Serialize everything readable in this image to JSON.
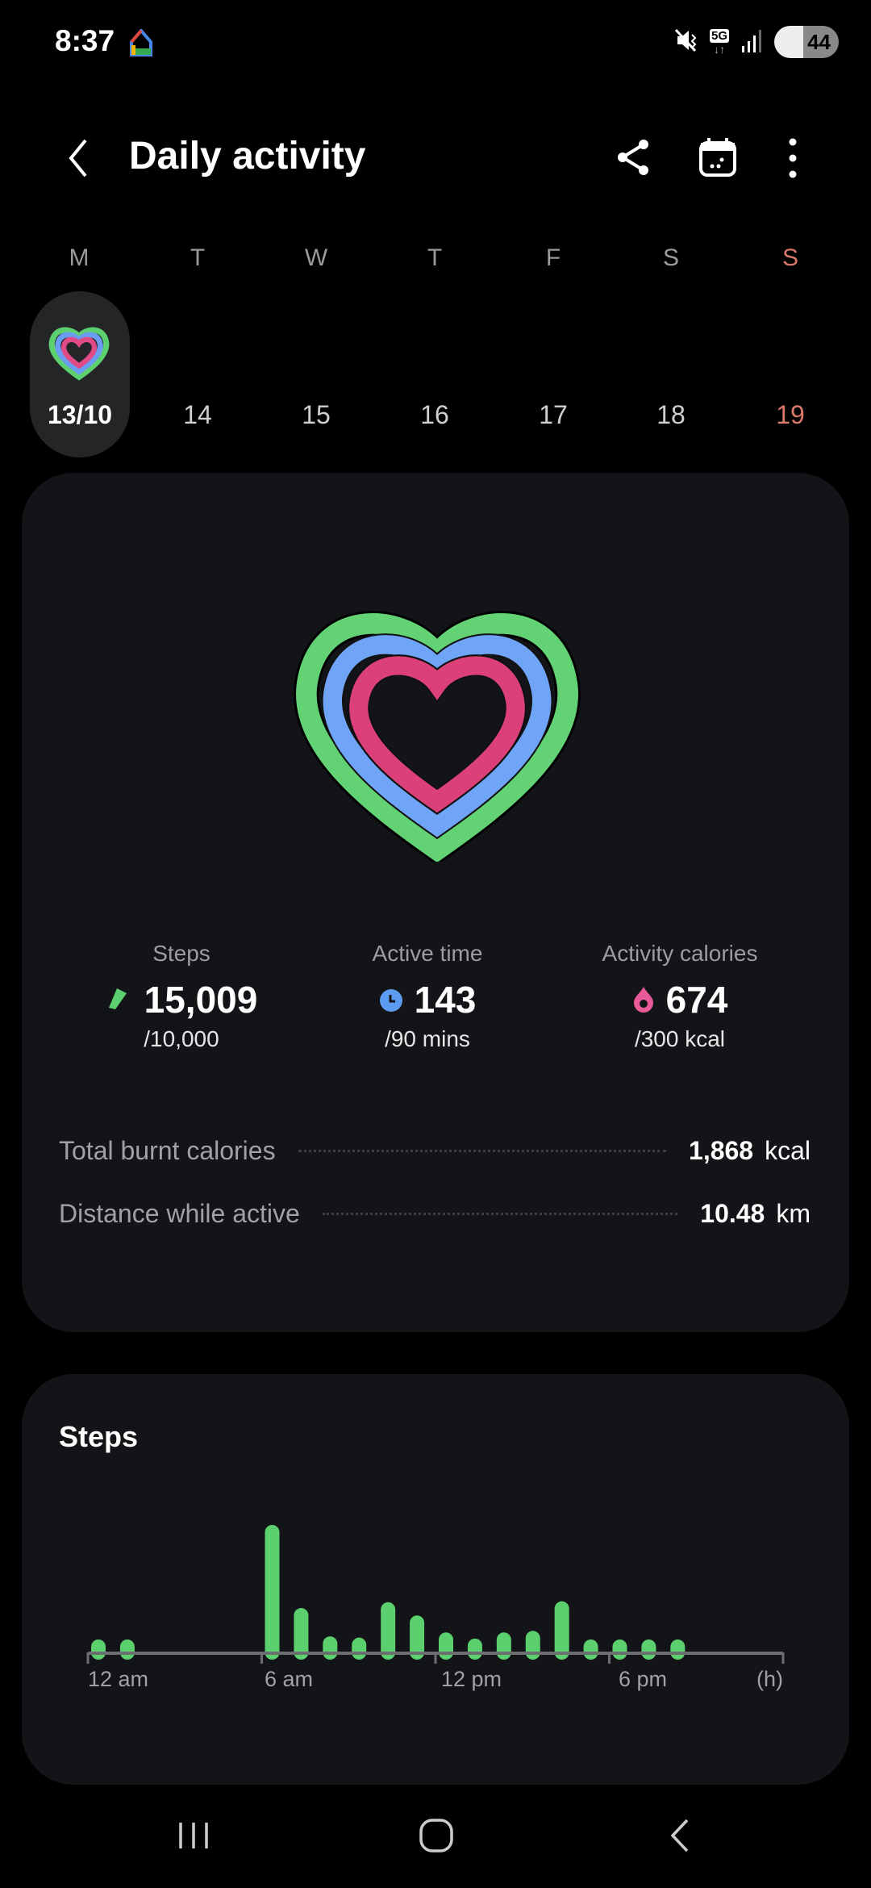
{
  "status_bar": {
    "time": "8:37",
    "battery": "44",
    "network": "5G"
  },
  "header": {
    "title": "Daily activity"
  },
  "week": {
    "days": [
      "M",
      "T",
      "W",
      "T",
      "F",
      "S",
      "S"
    ],
    "dates": [
      "13/10",
      "14",
      "15",
      "16",
      "17",
      "18",
      "19"
    ],
    "selected_index": 0,
    "sunday_color": "#d9776a"
  },
  "summary": {
    "steps": {
      "label": "Steps",
      "value": "15,009",
      "goal": "/10,000",
      "color": "#5ccf6e",
      "progress": 1.5
    },
    "active_time": {
      "label": "Active time",
      "value": "143",
      "goal": "/90 mins",
      "color": "#5c9cf0",
      "progress": 1.59
    },
    "calories": {
      "label": "Activity calories",
      "value": "674",
      "goal": "/300 kcal",
      "color": "#e85a98",
      "progress": 2.25
    },
    "rows": [
      {
        "label": "Total burnt calories",
        "value": "1,868",
        "unit": "kcal"
      },
      {
        "label": "Distance while active",
        "value": "10.48",
        "unit": "km"
      }
    ]
  },
  "steps_card": {
    "title": "Steps"
  },
  "chart_data": {
    "type": "bar",
    "xlabel": "(h)",
    "x_ticks": [
      "12 am",
      "6 am",
      "12 pm",
      "6 pm"
    ],
    "xlim": [
      0,
      24
    ],
    "grid": false,
    "color": "#5ccf6e",
    "hours": [
      0,
      1,
      6,
      7,
      8,
      9,
      10,
      11,
      12,
      13,
      14,
      15,
      16,
      17,
      18,
      19,
      20
    ],
    "values": [
      220,
      220,
      4140,
      1440,
      520,
      480,
      1630,
      1200,
      650,
      450,
      650,
      700,
      1660,
      350,
      235,
      235,
      220
    ]
  }
}
